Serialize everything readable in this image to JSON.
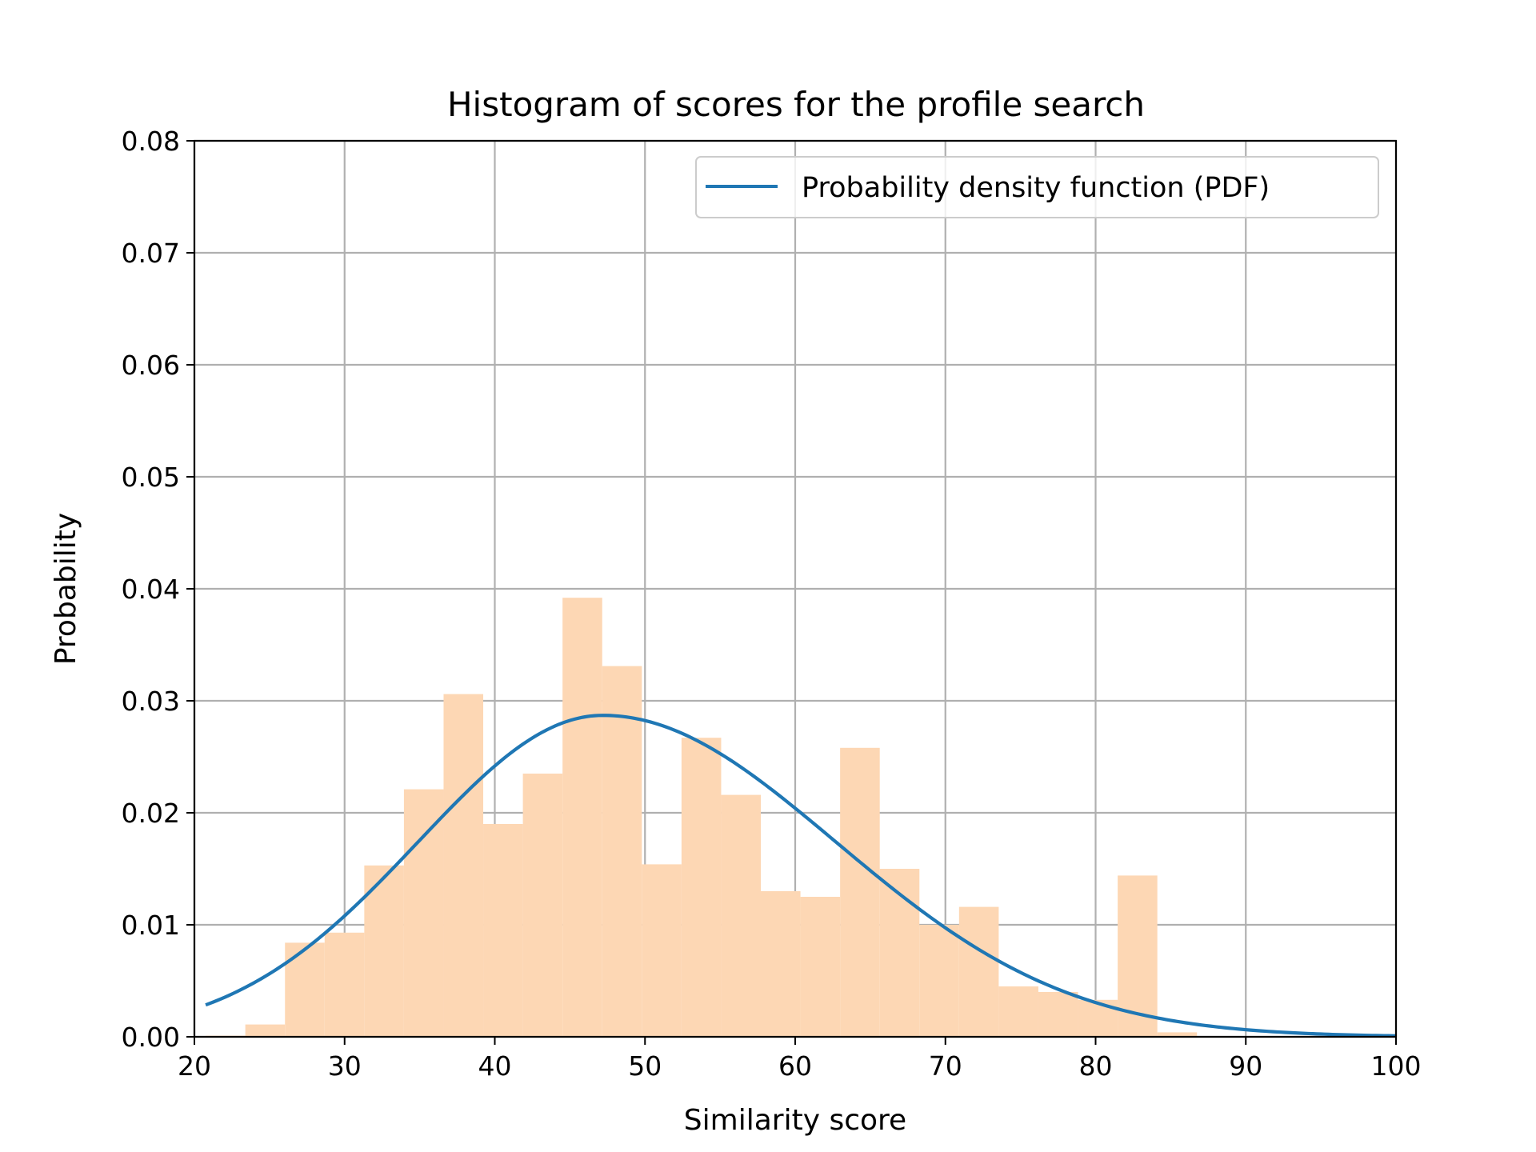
{
  "chart_data": {
    "type": "bar",
    "title": "Histogram of scores for the profile search",
    "xlabel": "Similarity score",
    "ylabel": "Probability",
    "xlim": [
      20,
      100
    ],
    "ylim": [
      0,
      0.08
    ],
    "xticks": [
      20,
      30,
      40,
      50,
      60,
      70,
      80,
      90,
      100
    ],
    "yticks": [
      0,
      0.01,
      0.02,
      0.03,
      0.04,
      0.05,
      0.06,
      0.07,
      0.08
    ],
    "xtick_labels": [
      "20",
      "30",
      "40",
      "50",
      "60",
      "70",
      "80",
      "90",
      "100"
    ],
    "ytick_labels": [
      "0.00",
      "0.01",
      "0.02",
      "0.03",
      "0.04",
      "0.05",
      "0.06",
      "0.07",
      "0.08"
    ],
    "grid": true,
    "legend_position": "top-right",
    "histogram": {
      "color": "#fdd7b4",
      "bin_edges": [
        20.75,
        23.39,
        26.03,
        28.67,
        31.31,
        33.95,
        36.59,
        39.23,
        41.87,
        44.51,
        47.15,
        49.79,
        52.43,
        55.07,
        57.71,
        60.35,
        62.99,
        65.63,
        68.27,
        70.91,
        73.55,
        76.19,
        78.83,
        81.47,
        84.11,
        86.75
      ],
      "values": [
        0.0001,
        0.0011,
        0.0084,
        0.0093,
        0.0153,
        0.0221,
        0.0306,
        0.019,
        0.0235,
        0.0392,
        0.0331,
        0.0154,
        0.0267,
        0.0216,
        0.013,
        0.0125,
        0.0258,
        0.015,
        0.01,
        0.0116,
        0.0045,
        0.004,
        0.0033,
        0.0144,
        0.0004
      ]
    },
    "series": [
      {
        "name": "Probability density function (PDF)",
        "type": "line",
        "color": "#1f77b4",
        "mu": 47.2,
        "sigma_left": 12.3,
        "sigma_right": 15.5,
        "x_range": [
          20.75,
          100
        ]
      }
    ]
  }
}
